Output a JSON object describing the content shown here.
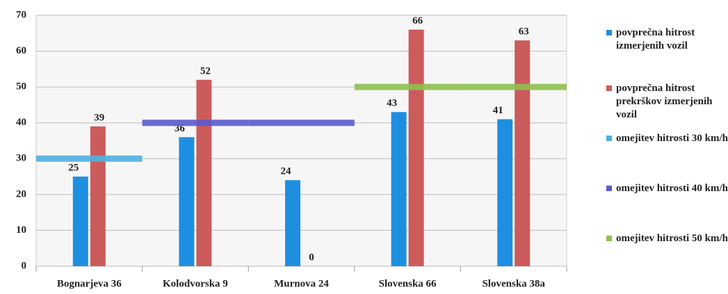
{
  "chart_data": {
    "type": "bar",
    "categories": [
      "Bognarjeva 36",
      "Kolodvorska 9",
      "Murnova 24",
      "Slovenska 66",
      "Slovenska 38a"
    ],
    "series": [
      {
        "name": "povprečna hitrost izmerjenih vozil",
        "color": "#1e8fe0",
        "type": "bar",
        "values": [
          25,
          36,
          24,
          43,
          41
        ]
      },
      {
        "name": "povprečna hitrost prekrškov izmerjenih vozil",
        "color": "#cc5b5b",
        "type": "bar",
        "values": [
          39,
          52,
          0,
          66,
          63
        ]
      },
      {
        "name": "omejitev hitrosti 30 km/h",
        "color": "#4fb0e0",
        "type": "line",
        "values": [
          30,
          null,
          null,
          null,
          null
        ]
      },
      {
        "name": "omejitev hitrosti 40 km/h",
        "color": "#5b5bd0",
        "type": "line",
        "values": [
          null,
          40,
          40,
          null,
          null
        ]
      },
      {
        "name": "omejitev hitrosti 50 km/h",
        "color": "#8fc050",
        "type": "line",
        "values": [
          null,
          null,
          null,
          50,
          50
        ]
      }
    ],
    "ylim": [
      0,
      70
    ],
    "yticks": [
      0,
      10,
      20,
      30,
      40,
      50,
      60,
      70
    ],
    "grid": true,
    "legend": "right"
  }
}
